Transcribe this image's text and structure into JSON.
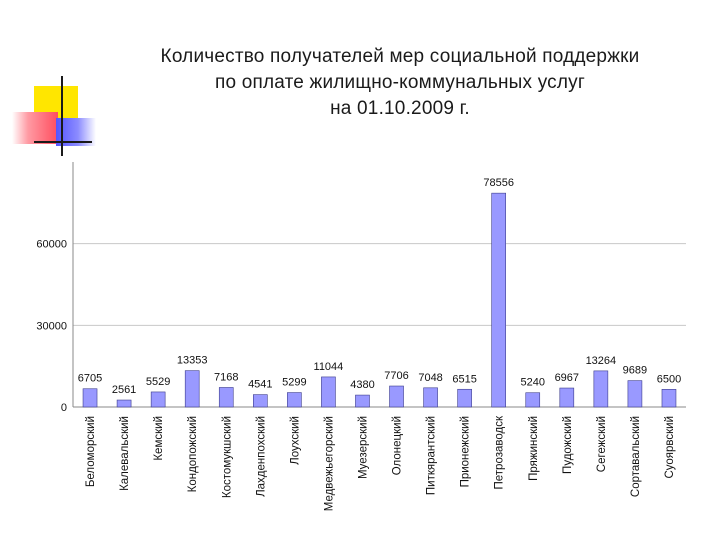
{
  "slide": {
    "title_lines": [
      "Количество получателей мер социальной поддержки",
      "по оплате жилищно-коммунальных услуг",
      "на 01.10.2009 г."
    ]
  },
  "colors": {
    "bar": "#9999ff",
    "bar_edge": "#3c3c8c",
    "grid": "#c8c8c8",
    "deco_yellow": "#ffe600",
    "deco_red": "#ff4d5e",
    "deco_blue": "#5454ff"
  },
  "chart_data": {
    "type": "bar",
    "categories": [
      "Беломорский",
      "Калевальский",
      "Кемский",
      "Кондопожский",
      "Костомукшский",
      "Лахденпохский",
      "Лоухский",
      "Медвежьегорский",
      "Муезерский",
      "Олонецкий",
      "Питкярантский",
      "Прионежский",
      "Петрозаводск",
      "Пряжинский",
      "Пудожский",
      "Сегежский",
      "Сортавальский",
      "Суоярвский"
    ],
    "values": [
      6705,
      2561,
      5529,
      13353,
      7168,
      4541,
      5299,
      11044,
      4380,
      7706,
      7048,
      6515,
      78556,
      5240,
      6967,
      13264,
      9689,
      6500
    ],
    "value_labels": [
      "6705",
      "2561",
      "5529",
      "13353",
      "7168",
      "4541",
      "5299",
      "11044",
      "4380",
      "7706",
      "7048",
      "6515",
      "78556",
      "5240",
      "6967",
      "13264",
      "9689",
      "6500"
    ],
    "yticks": [
      0,
      30000,
      60000
    ],
    "ytick_labels": [
      "0",
      "30000",
      "60000"
    ],
    "ylim": [
      0,
      90000
    ],
    "grid": true,
    "legend": "none"
  }
}
